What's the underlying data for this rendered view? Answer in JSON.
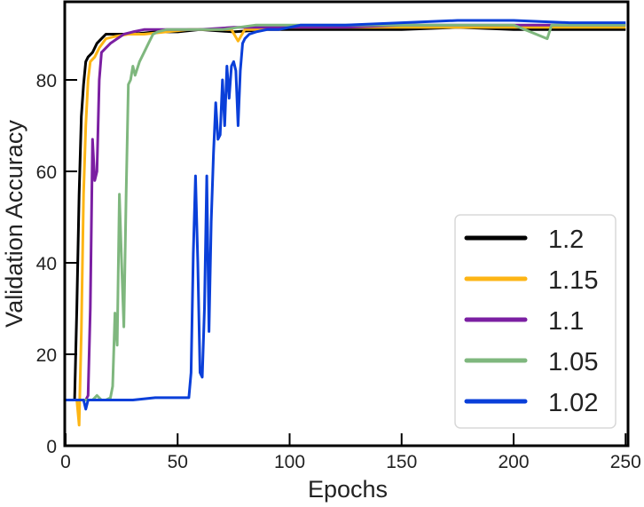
{
  "chart_data": {
    "type": "line",
    "title": "",
    "xlabel": "Epochs",
    "ylabel": "Validation Accuracy",
    "xlim": [
      0,
      251
    ],
    "ylim": [
      0,
      97
    ],
    "xticks": [
      0,
      50,
      100,
      150,
      200,
      250
    ],
    "yticks": [
      0,
      20,
      40,
      60,
      80
    ],
    "grid": false,
    "legend_position": "lower right",
    "series": [
      {
        "name": "1.2",
        "color": "#000000",
        "points": [
          [
            0,
            10
          ],
          [
            4,
            10
          ],
          [
            5,
            30
          ],
          [
            6,
            55
          ],
          [
            7,
            72
          ],
          [
            8,
            79
          ],
          [
            9,
            84
          ],
          [
            10,
            85
          ],
          [
            12,
            86
          ],
          [
            14,
            88
          ],
          [
            16,
            89
          ],
          [
            18,
            90
          ],
          [
            20,
            90
          ],
          [
            25,
            90
          ],
          [
            30,
            90
          ],
          [
            40,
            90.5
          ],
          [
            50,
            90.5
          ],
          [
            60,
            91
          ],
          [
            75,
            90.5
          ],
          [
            90,
            91
          ],
          [
            100,
            91
          ],
          [
            110,
            91
          ],
          [
            125,
            91
          ],
          [
            150,
            91
          ],
          [
            175,
            91.5
          ],
          [
            200,
            91
          ],
          [
            225,
            91
          ],
          [
            250,
            91
          ]
        ]
      },
      {
        "name": "1.15",
        "color": "#FDB515",
        "points": [
          [
            0,
            10
          ],
          [
            5,
            10
          ],
          [
            6,
            4.5
          ],
          [
            7,
            25
          ],
          [
            8,
            55
          ],
          [
            9,
            70
          ],
          [
            10,
            80
          ],
          [
            11,
            84
          ],
          [
            13,
            85
          ],
          [
            15,
            87
          ],
          [
            18,
            89
          ],
          [
            22,
            89.5
          ],
          [
            28,
            90
          ],
          [
            35,
            90
          ],
          [
            45,
            90.5
          ],
          [
            55,
            91
          ],
          [
            65,
            91
          ],
          [
            74,
            91
          ],
          [
            77,
            88.5
          ],
          [
            80,
            91
          ],
          [
            90,
            91
          ],
          [
            100,
            91.5
          ],
          [
            125,
            91.5
          ],
          [
            150,
            91.5
          ],
          [
            175,
            91.5
          ],
          [
            200,
            91.5
          ],
          [
            225,
            91.5
          ],
          [
            250,
            91.5
          ]
        ]
      },
      {
        "name": "1.1",
        "color": "#7B1FA2",
        "points": [
          [
            0,
            10
          ],
          [
            9,
            10
          ],
          [
            10,
            11
          ],
          [
            11,
            30
          ],
          [
            12,
            67
          ],
          [
            13,
            58
          ],
          [
            14,
            60
          ],
          [
            15,
            80
          ],
          [
            16,
            86
          ],
          [
            18,
            87
          ],
          [
            20,
            88
          ],
          [
            23,
            89
          ],
          [
            26,
            90
          ],
          [
            30,
            90.5
          ],
          [
            35,
            91
          ],
          [
            45,
            91
          ],
          [
            60,
            91
          ],
          [
            75,
            91.5
          ],
          [
            90,
            91.5
          ],
          [
            100,
            91.5
          ],
          [
            125,
            91.5
          ],
          [
            150,
            92
          ],
          [
            175,
            92
          ],
          [
            200,
            92
          ],
          [
            225,
            92
          ],
          [
            250,
            92
          ]
        ]
      },
      {
        "name": "1.05",
        "color": "#7FB77E",
        "points": [
          [
            0,
            10
          ],
          [
            12,
            10
          ],
          [
            14,
            11
          ],
          [
            16,
            10
          ],
          [
            18,
            10
          ],
          [
            20,
            10.5
          ],
          [
            21,
            13
          ],
          [
            22,
            29
          ],
          [
            23,
            22
          ],
          [
            24,
            55
          ],
          [
            25,
            40
          ],
          [
            26,
            26
          ],
          [
            27,
            55
          ],
          [
            28,
            79
          ],
          [
            29,
            80
          ],
          [
            30,
            83
          ],
          [
            31,
            81
          ],
          [
            33,
            84
          ],
          [
            35,
            86
          ],
          [
            37,
            88
          ],
          [
            39,
            90
          ],
          [
            41,
            90.5
          ],
          [
            45,
            91
          ],
          [
            55,
            91
          ],
          [
            70,
            91
          ],
          [
            85,
            92
          ],
          [
            95,
            92
          ],
          [
            100,
            92
          ],
          [
            125,
            92
          ],
          [
            150,
            92
          ],
          [
            175,
            92
          ],
          [
            200,
            92
          ],
          [
            215,
            89
          ],
          [
            217,
            92
          ],
          [
            225,
            92
          ],
          [
            250,
            92
          ]
        ]
      },
      {
        "name": "1.02",
        "color": "#0A3FD9",
        "points": [
          [
            0,
            10
          ],
          [
            5,
            10
          ],
          [
            8,
            10
          ],
          [
            9,
            8
          ],
          [
            10,
            10
          ],
          [
            15,
            10
          ],
          [
            20,
            10
          ],
          [
            30,
            10
          ],
          [
            40,
            10.5
          ],
          [
            50,
            10.5
          ],
          [
            55,
            10.5
          ],
          [
            56,
            16
          ],
          [
            57,
            42
          ],
          [
            58,
            59
          ],
          [
            59,
            40
          ],
          [
            60,
            16
          ],
          [
            61,
            15
          ],
          [
            62,
            30
          ],
          [
            63,
            59
          ],
          [
            64,
            25
          ],
          [
            65,
            49
          ],
          [
            66,
            64
          ],
          [
            67,
            75
          ],
          [
            68,
            67
          ],
          [
            69,
            68
          ],
          [
            70,
            80
          ],
          [
            71,
            70
          ],
          [
            72,
            83
          ],
          [
            73,
            76
          ],
          [
            74,
            83
          ],
          [
            75,
            84
          ],
          [
            76,
            82
          ],
          [
            77,
            70
          ],
          [
            78,
            82
          ],
          [
            79,
            88
          ],
          [
            80,
            89
          ],
          [
            82,
            90
          ],
          [
            85,
            90.5
          ],
          [
            90,
            91
          ],
          [
            95,
            91
          ],
          [
            100,
            91.5
          ],
          [
            105,
            92
          ],
          [
            110,
            92
          ],
          [
            120,
            92
          ],
          [
            125,
            92
          ],
          [
            150,
            92.5
          ],
          [
            175,
            93
          ],
          [
            200,
            93
          ],
          [
            225,
            92.5
          ],
          [
            250,
            92.5
          ]
        ]
      }
    ]
  },
  "legend": {
    "items": [
      {
        "label": "1.2",
        "color": "#000000"
      },
      {
        "label": "1.15",
        "color": "#FDB515"
      },
      {
        "label": "1.1",
        "color": "#7B1FA2"
      },
      {
        "label": "1.05",
        "color": "#7FB77E"
      },
      {
        "label": "1.02",
        "color": "#0A3FD9"
      }
    ]
  },
  "axes": {
    "xlabel": "Epochs",
    "ylabel": "Validation Accuracy",
    "xtick_labels": [
      "0",
      "50",
      "100",
      "150",
      "200",
      "250"
    ],
    "ytick_labels": [
      "0",
      "20",
      "40",
      "60",
      "80"
    ]
  }
}
